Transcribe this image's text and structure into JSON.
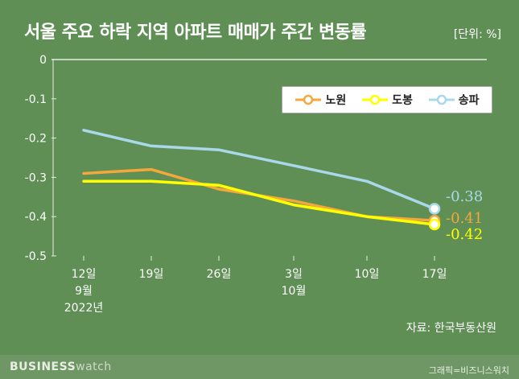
{
  "header": {
    "title": "서울 주요 하락 지역 아파트 매매가 주간 변동률",
    "unit": "[단위: %]"
  },
  "footer": {
    "source": "자료: 한국부동산원",
    "brand_main": "BUSINESS",
    "brand_sub": "watch",
    "credit": "그래픽=비즈니스워치"
  },
  "colors": {
    "background": "#5f8f55",
    "nowon": "#f4a73b",
    "dobong": "#ffff00",
    "songpa": "#a9d8ea"
  },
  "chart_data": {
    "type": "line",
    "categories": [
      [
        "12일",
        "9월",
        "2022년"
      ],
      [
        "19일"
      ],
      [
        "26일"
      ],
      [
        "3일",
        "10월"
      ],
      [
        "10일"
      ],
      [
        "17일"
      ]
    ],
    "ylim": [
      -0.5,
      0
    ],
    "yticks": [
      "0",
      "-0.1",
      "-0.2",
      "-0.3",
      "-0.4",
      "-0.5"
    ],
    "ytick_values": [
      0,
      -0.1,
      -0.2,
      -0.3,
      -0.4,
      -0.5
    ],
    "legend_position": "top-right",
    "grid": false,
    "series": [
      {
        "name": "노원",
        "color": "#f4a73b",
        "values": [
          -0.29,
          -0.28,
          -0.33,
          -0.36,
          -0.4,
          -0.41
        ],
        "end_label": "-0.41"
      },
      {
        "name": "도봉",
        "color": "#ffff00",
        "values": [
          -0.31,
          -0.31,
          -0.32,
          -0.37,
          -0.4,
          -0.42
        ],
        "end_label": "-0.42"
      },
      {
        "name": "송파",
        "color": "#a9d8ea",
        "values": [
          -0.18,
          -0.22,
          -0.23,
          -0.27,
          -0.31,
          -0.38
        ],
        "end_label": "-0.38"
      }
    ]
  }
}
